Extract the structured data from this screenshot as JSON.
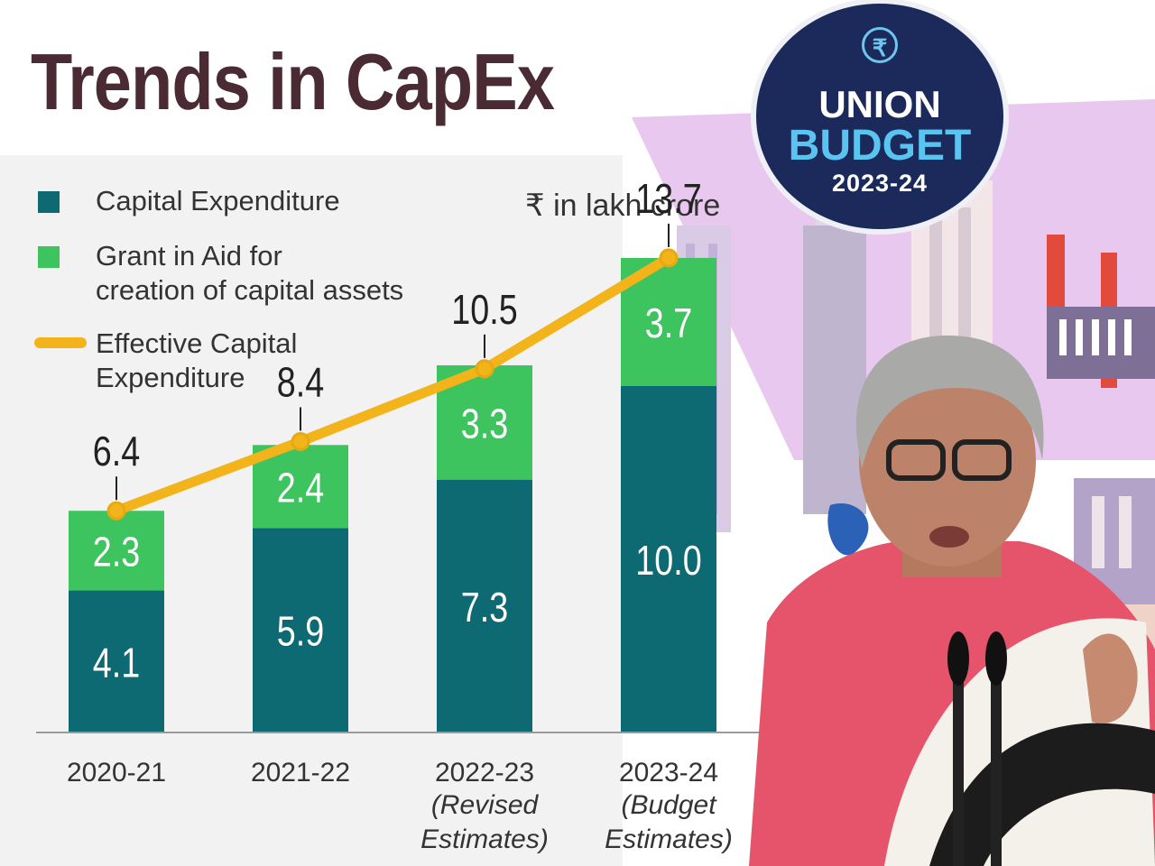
{
  "title": "Trends in CapEx",
  "unit_label": "₹ in lakh crore",
  "badge": {
    "symbol": "₹",
    "line1": "UNION",
    "line2": "BUDGET",
    "line3": "2023-24"
  },
  "legend": [
    {
      "label": "Capital Expenditure",
      "color": "#0e6a72"
    },
    {
      "label": "Grant in Aid for\ncreation of capital assets",
      "color": "#3ec45f"
    },
    {
      "label": "Effective Capital\nExpenditure",
      "color": "#f2b31b"
    }
  ],
  "chart_data": {
    "type": "bar",
    "stacked": true,
    "categories": [
      "2020-21",
      "2021-22",
      "2022-23",
      "2023-24"
    ],
    "category_notes": [
      "",
      "",
      "(Revised\nEstimates)",
      "(Budget\nEstimates)"
    ],
    "series": [
      {
        "name": "Capital Expenditure",
        "values": [
          4.1,
          5.9,
          7.3,
          10.0
        ],
        "labels": [
          "4.1",
          "5.9",
          "7.3",
          "10.0"
        ],
        "color": "#0e6a72"
      },
      {
        "name": "Grant in Aid for creation of capital assets",
        "values": [
          2.3,
          2.4,
          3.3,
          3.7
        ],
        "labels": [
          "2.3",
          "2.4",
          "3.3",
          "3.7"
        ],
        "color": "#3ec45f"
      }
    ],
    "line": {
      "name": "Effective Capital Expenditure",
      "values": [
        6.4,
        8.4,
        10.5,
        13.7
      ],
      "labels": [
        "6.4",
        "8.4",
        "10.5",
        "13.7"
      ],
      "color": "#f2b31b"
    },
    "ylim": [
      0,
      15
    ],
    "grid": false,
    "legend_position": "top-left"
  }
}
